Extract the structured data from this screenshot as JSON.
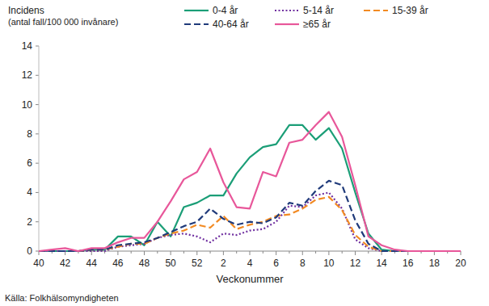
{
  "chart_data": {
    "type": "line",
    "ylabel": "Incidens",
    "ylabel_note": "(antal fall/100 000 invånare)",
    "xlabel": "Veckonummer",
    "source": "Källa: Folkhälsomyndigheten",
    "categories": [
      40,
      null,
      42,
      null,
      44,
      null,
      46,
      null,
      48,
      null,
      50,
      null,
      52,
      null,
      2,
      null,
      4,
      null,
      6,
      null,
      8,
      null,
      10,
      null,
      12,
      null,
      14,
      null,
      16,
      null,
      18,
      null,
      20
    ],
    "ylim": [
      0,
      14
    ],
    "yticks": [
      0,
      2,
      4,
      6,
      8,
      10,
      12,
      14
    ],
    "grid": false,
    "legend": "top",
    "series": [
      {
        "name": "0-4 år",
        "color": "#1b9e77",
        "line_style": "solid",
        "values": [
          0,
          0,
          0,
          0,
          0.1,
          0.1,
          1.0,
          1.0,
          0.4,
          2.0,
          1.0,
          3.0,
          3.3,
          3.8,
          3.8,
          5.3,
          6.4,
          7.1,
          7.3,
          8.6,
          8.6,
          7.6,
          8.4,
          7.0,
          4.0,
          1.2,
          0.1,
          0,
          0,
          0,
          0,
          0,
          0
        ]
      },
      {
        "name": "5-14 år",
        "color": "#7030a0",
        "line_style": "dotted",
        "values": [
          0,
          0,
          0,
          0,
          0,
          0,
          0.3,
          0.4,
          0.5,
          0.9,
          1.1,
          1.2,
          1.0,
          0.6,
          1.2,
          1.1,
          1.4,
          1.5,
          2.0,
          3.1,
          3.0,
          3.8,
          4.0,
          2.9,
          0.8,
          0.2,
          0,
          0,
          0,
          0,
          0,
          0,
          0
        ]
      },
      {
        "name": "15-39 år",
        "color": "#f28a22",
        "line_style": "dashed",
        "values": [
          0,
          0,
          0,
          0,
          0.1,
          0.1,
          0.3,
          0.5,
          0.5,
          0.9,
          1.2,
          1.4,
          1.8,
          1.6,
          2.4,
          1.5,
          1.8,
          2.0,
          2.4,
          2.5,
          2.9,
          3.5,
          3.7,
          2.8,
          1.1,
          0.3,
          0,
          0,
          0,
          0,
          0,
          0,
          0
        ]
      },
      {
        "name": "40-64 år",
        "color": "#1f3a7a",
        "line_style": "dashed",
        "values": [
          0,
          0,
          0,
          0,
          0.1,
          0.1,
          0.4,
          0.5,
          0.6,
          0.9,
          1.3,
          1.7,
          2.0,
          2.9,
          2.2,
          1.8,
          2.0,
          1.9,
          2.3,
          3.3,
          3.1,
          4.1,
          4.8,
          4.5,
          2.1,
          0.5,
          0,
          0,
          0,
          0,
          0,
          0,
          0
        ]
      },
      {
        "name": "≥65 år",
        "color": "#e8579a",
        "line_style": "solid",
        "values": [
          0,
          0.1,
          0.2,
          0,
          0.2,
          0.2,
          0.6,
          0.9,
          0.9,
          2.0,
          3.4,
          4.9,
          5.4,
          7.0,
          4.7,
          3.0,
          2.9,
          5.4,
          5.1,
          7.4,
          7.6,
          8.6,
          9.5,
          7.8,
          4.5,
          1.0,
          0.4,
          0.1,
          0,
          0,
          0,
          0,
          0
        ]
      }
    ]
  }
}
